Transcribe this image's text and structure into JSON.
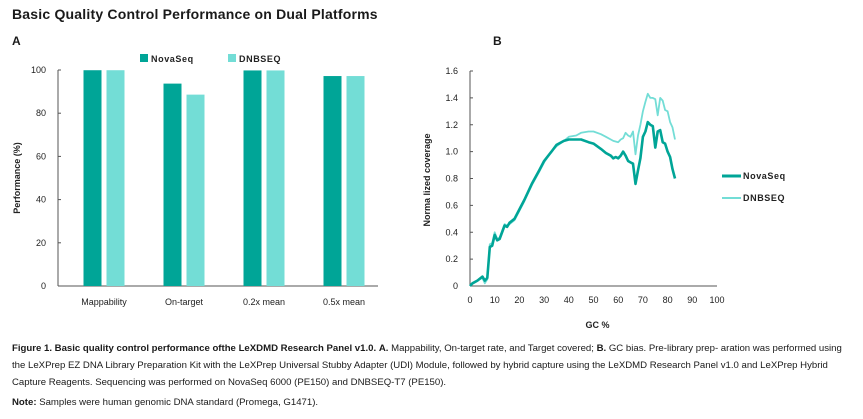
{
  "title": "Basic Quality Control Performance on Dual Platforms",
  "colors": {
    "novaseq": "#00A597",
    "dnbseq": "#73DDD6",
    "axis": "#555555"
  },
  "chart_data": [
    {
      "panel": "A",
      "type": "bar",
      "title": "",
      "xlabel": "",
      "ylabel": "Performance (%)",
      "ylim": [
        0,
        100
      ],
      "yticks": [
        "0",
        "20",
        "40",
        "60",
        "80",
        "100"
      ],
      "categories": [
        "Mappability",
        "On-target",
        "0.2x mean",
        "0.5x mean"
      ],
      "legend_position": "top",
      "series": [
        {
          "name": "NovaSeq",
          "values": [
            99.9,
            93.7,
            99.8,
            97.2
          ]
        },
        {
          "name": "DNBSEQ",
          "values": [
            99.9,
            88.6,
            99.8,
            97.2
          ]
        }
      ],
      "grid": false
    },
    {
      "panel": "B",
      "type": "line",
      "title": "",
      "xlabel": "GC %",
      "ylabel": "Norma lized coverage",
      "xlim": [
        0,
        100
      ],
      "ylim": [
        0,
        1.6
      ],
      "xticks": [
        "0",
        "10",
        "20",
        "30",
        "40",
        "50",
        "60",
        "70",
        "80",
        "90",
        "100"
      ],
      "yticks": [
        "0",
        "0.2",
        "0.4",
        "0.6",
        "0.8",
        "1.0",
        "1.2",
        "1.4",
        "1.6"
      ],
      "legend_position": "right",
      "grid": false,
      "series": [
        {
          "name": "NovaSeq",
          "x": [
            0,
            1,
            3,
            5,
            6,
            7,
            8,
            9,
            10,
            11,
            12,
            14,
            15,
            16,
            18,
            20,
            22,
            25,
            28,
            30,
            33,
            35,
            38,
            40,
            43,
            45,
            48,
            50,
            53,
            55,
            57,
            58,
            59,
            60,
            61,
            62,
            63,
            64,
            65,
            66,
            67,
            68,
            69,
            70,
            71,
            72,
            73,
            74,
            75,
            76,
            77,
            78,
            79,
            80,
            81,
            82,
            83
          ],
          "y": [
            0,
            0.02,
            0.04,
            0.07,
            0.04,
            0.06,
            0.29,
            0.3,
            0.38,
            0.34,
            0.35,
            0.45,
            0.44,
            0.47,
            0.5,
            0.57,
            0.64,
            0.76,
            0.86,
            0.93,
            1.0,
            1.05,
            1.08,
            1.09,
            1.09,
            1.09,
            1.07,
            1.06,
            1.02,
            0.99,
            0.97,
            0.95,
            0.96,
            0.95,
            0.97,
            1.0,
            0.97,
            0.93,
            0.92,
            0.91,
            0.76,
            0.86,
            0.95,
            1.11,
            1.15,
            1.22,
            1.2,
            1.19,
            1.03,
            1.15,
            1.16,
            1.07,
            1.06,
            1.0,
            0.96,
            0.87,
            0.8
          ]
        },
        {
          "name": "DNBSEQ",
          "x": [
            0,
            1,
            3,
            5,
            6,
            7,
            8,
            9,
            10,
            11,
            12,
            14,
            15,
            16,
            18,
            20,
            22,
            25,
            28,
            30,
            33,
            35,
            38,
            40,
            43,
            45,
            48,
            50,
            53,
            55,
            57,
            58,
            60,
            61,
            62,
            63,
            64,
            65,
            66,
            67,
            68,
            69,
            70,
            71,
            72,
            73,
            74,
            75,
            76,
            77,
            78,
            79,
            80,
            81,
            82,
            83
          ],
          "y": [
            0,
            0.02,
            0.04,
            0.06,
            0.02,
            0.05,
            0.31,
            0.32,
            0.4,
            0.35,
            0.36,
            0.46,
            0.45,
            0.46,
            0.49,
            0.56,
            0.63,
            0.75,
            0.85,
            0.92,
            1.0,
            1.04,
            1.08,
            1.11,
            1.12,
            1.14,
            1.15,
            1.15,
            1.13,
            1.11,
            1.09,
            1.08,
            1.07,
            1.09,
            1.1,
            1.14,
            1.12,
            1.11,
            1.15,
            0.98,
            1.12,
            1.2,
            1.3,
            1.37,
            1.43,
            1.4,
            1.4,
            1.39,
            1.27,
            1.4,
            1.38,
            1.31,
            1.3,
            1.22,
            1.18,
            1.09
          ]
        }
      ]
    }
  ],
  "panels": {
    "a_label": "A",
    "b_label": "B"
  },
  "caption": {
    "bold_lead": "Figure 1. Basic quality control performance ofthe LeXDMD Research Panel v1.0.",
    "a_label": "A.",
    "a_text": "Mappability, On-target rate, and Target covered;",
    "b_label": "B.",
    "b_text": "GC bias. Pre-library prep- aration was performed using the LeXPrep EZ DNA Library Preparation Kit with the LeXPrep Universal Stubby Adapter (UDI) Module, followed by hybrid capture using the LeXDMD Research Panel v1.0 and LeXPrep Hybrid Capture Reagents. Sequencing was performed on NovaSeq 6000 (PE150) and DNBSEQ-T7 (PE150)."
  },
  "note": {
    "label": "Note:",
    "text": "Samples were human genomic DNA standard (Promega, G1471)."
  }
}
